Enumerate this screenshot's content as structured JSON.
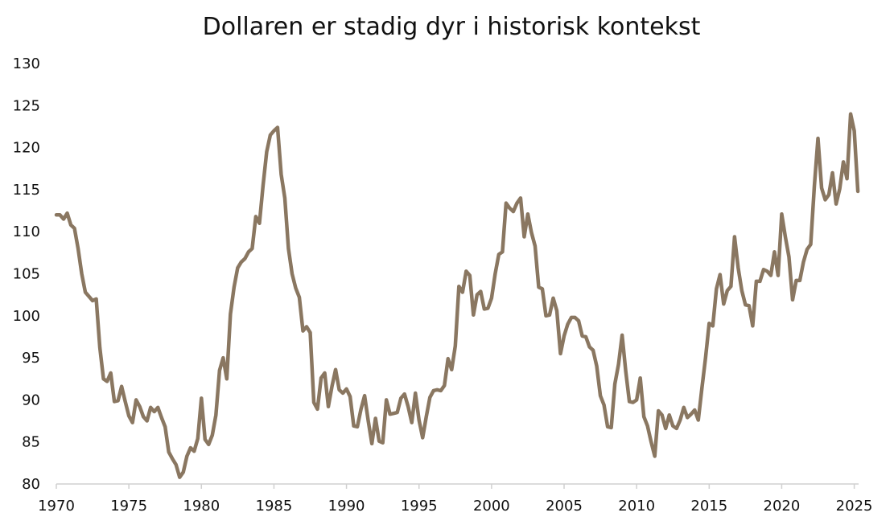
{
  "chart_data": {
    "type": "line",
    "title": "Dollaren er stadig dyr i historisk kontekst",
    "xlabel": "",
    "ylabel": "",
    "xlim": [
      1970,
      2025.3
    ],
    "ylim": [
      80,
      130
    ],
    "x_ticks": [
      1970,
      1975,
      1980,
      1985,
      1990,
      1995,
      2000,
      2005,
      2010,
      2015,
      2020,
      2025
    ],
    "y_ticks": [
      80,
      85,
      90,
      95,
      100,
      105,
      110,
      115,
      120,
      125,
      130
    ],
    "grid": false,
    "legend": "none",
    "colors": {
      "line": "#8a7761",
      "axis": "#d0d0d0",
      "text": "#111111"
    },
    "series": [
      {
        "name": "",
        "x": [
          1970.0,
          1970.25,
          1970.5,
          1970.75,
          1971.0,
          1971.25,
          1971.5,
          1971.75,
          1972.0,
          1972.25,
          1972.5,
          1972.75,
          1973.0,
          1973.25,
          1973.5,
          1973.75,
          1974.0,
          1974.25,
          1974.5,
          1974.75,
          1975.0,
          1975.25,
          1975.5,
          1975.75,
          1976.0,
          1976.25,
          1976.5,
          1976.75,
          1977.0,
          1977.25,
          1977.5,
          1977.75,
          1978.0,
          1978.25,
          1978.5,
          1978.75,
          1979.0,
          1979.25,
          1979.5,
          1979.75,
          1980.0,
          1980.25,
          1980.5,
          1980.75,
          1981.0,
          1981.25,
          1981.5,
          1981.75,
          1982.0,
          1982.25,
          1982.5,
          1982.75,
          1983.0,
          1983.25,
          1983.5,
          1983.75,
          1984.0,
          1984.25,
          1984.5,
          1984.75,
          1985.0,
          1985.25,
          1985.5,
          1985.75,
          1986.0,
          1986.25,
          1986.5,
          1986.75,
          1987.0,
          1987.25,
          1987.5,
          1987.75,
          1988.0,
          1988.25,
          1988.5,
          1988.75,
          1989.0,
          1989.25,
          1989.5,
          1989.75,
          1990.0,
          1990.25,
          1990.5,
          1990.75,
          1991.0,
          1991.25,
          1991.5,
          1991.75,
          1992.0,
          1992.25,
          1992.5,
          1992.75,
          1993.0,
          1993.25,
          1993.5,
          1993.75,
          1994.0,
          1994.25,
          1994.5,
          1994.75,
          1995.0,
          1995.25,
          1995.5,
          1995.75,
          1996.0,
          1996.25,
          1996.5,
          1996.75,
          1997.0,
          1997.25,
          1997.5,
          1997.75,
          1998.0,
          1998.25,
          1998.5,
          1998.75,
          1999.0,
          1999.25,
          1999.5,
          1999.75,
          2000.0,
          2000.25,
          2000.5,
          2000.75,
          2001.0,
          2001.25,
          2001.5,
          2001.75,
          2002.0,
          2002.25,
          2002.5,
          2002.75,
          2003.0,
          2003.25,
          2003.5,
          2003.75,
          2004.0,
          2004.25,
          2004.5,
          2004.75,
          2005.0,
          2005.25,
          2005.5,
          2005.75,
          2006.0,
          2006.25,
          2006.5,
          2006.75,
          2007.0,
          2007.25,
          2007.5,
          2007.75,
          2008.0,
          2008.25,
          2008.5,
          2008.75,
          2009.0,
          2009.25,
          2009.5,
          2009.75,
          2010.0,
          2010.25,
          2010.5,
          2010.75,
          2011.0,
          2011.25,
          2011.5,
          2011.75,
          2012.0,
          2012.25,
          2012.5,
          2012.75,
          2013.0,
          2013.25,
          2013.5,
          2013.75,
          2014.0,
          2014.25,
          2014.5,
          2014.75,
          2015.0,
          2015.25,
          2015.5,
          2015.75,
          2016.0,
          2016.25,
          2016.5,
          2016.75,
          2017.0,
          2017.25,
          2017.5,
          2017.75,
          2018.0,
          2018.25,
          2018.5,
          2018.75,
          2019.0,
          2019.25,
          2019.5,
          2019.75,
          2020.0,
          2020.25,
          2020.5,
          2020.75,
          2021.0,
          2021.25,
          2021.5,
          2021.75,
          2022.0,
          2022.25,
          2022.5,
          2022.75,
          2023.0,
          2023.25,
          2023.5,
          2023.75,
          2024.0,
          2024.25,
          2024.5,
          2024.75,
          2025.0,
          2025.25
        ],
        "values": [
          112.0,
          112.0,
          111.5,
          112.2,
          110.8,
          110.4,
          108.0,
          105.0,
          102.8,
          102.3,
          101.8,
          102.0,
          96.2,
          92.5,
          92.2,
          93.2,
          89.8,
          89.9,
          91.6,
          89.8,
          88.1,
          87.3,
          90.0,
          89.2,
          88.0,
          87.5,
          89.1,
          88.6,
          89.1,
          87.9,
          86.8,
          83.8,
          83.0,
          82.3,
          80.8,
          81.4,
          83.3,
          84.3,
          83.9,
          85.4,
          90.2,
          85.3,
          84.7,
          85.8,
          88.2,
          93.5,
          95.0,
          92.5,
          100.2,
          103.4,
          105.7,
          106.4,
          106.8,
          107.6,
          108.0,
          111.8,
          111.0,
          115.5,
          119.5,
          121.5,
          122.0,
          122.4,
          116.8,
          114.0,
          108.0,
          105.0,
          103.3,
          102.2,
          98.2,
          98.7,
          98.0,
          89.7,
          88.9,
          92.6,
          93.2,
          89.2,
          91.6,
          93.6,
          91.2,
          90.8,
          91.3,
          90.4,
          86.9,
          86.8,
          88.9,
          90.5,
          87.5,
          84.8,
          87.8,
          85.1,
          84.9,
          90.0,
          88.3,
          88.4,
          88.5,
          90.2,
          90.7,
          89.2,
          87.3,
          90.8,
          87.6,
          85.5,
          88.0,
          90.3,
          91.1,
          91.2,
          91.1,
          91.7,
          94.9,
          93.6,
          96.4,
          103.5,
          102.8,
          105.3,
          104.8,
          100.1,
          102.5,
          102.9,
          100.8,
          100.9,
          102.1,
          105.0,
          107.3,
          107.6,
          113.4,
          112.8,
          112.4,
          113.4,
          114.0,
          109.4,
          112.1,
          109.9,
          108.3,
          103.4,
          103.2,
          100.0,
          100.1,
          102.1,
          100.6,
          95.5,
          97.6,
          99.0,
          99.8,
          99.8,
          99.4,
          97.6,
          97.5,
          96.3,
          95.9,
          94.0,
          90.5,
          89.4,
          86.8,
          86.7,
          91.9,
          94.2,
          97.7,
          93.4,
          89.8,
          89.7,
          90.0,
          92.6,
          88.0,
          86.9,
          85.0,
          83.3,
          88.7,
          88.2,
          86.6,
          88.2,
          86.9,
          86.6,
          87.6,
          89.1,
          87.9,
          88.3,
          88.8,
          87.6,
          91.4,
          95.0,
          99.1,
          98.8,
          103.2,
          104.9,
          101.4,
          103.0,
          103.5,
          109.4,
          105.7,
          103.0,
          101.3,
          101.2,
          98.8,
          104.1,
          104.1,
          105.5,
          105.3,
          104.8,
          107.6,
          104.8,
          112.1,
          109.4,
          107.0,
          101.9,
          104.2,
          104.2,
          106.4,
          107.9,
          108.5,
          115.4,
          121.1,
          115.2,
          113.8,
          114.4,
          117.0,
          113.3,
          115.1,
          118.3,
          116.3,
          124.0,
          122.0,
          114.8
        ]
      }
    ]
  }
}
